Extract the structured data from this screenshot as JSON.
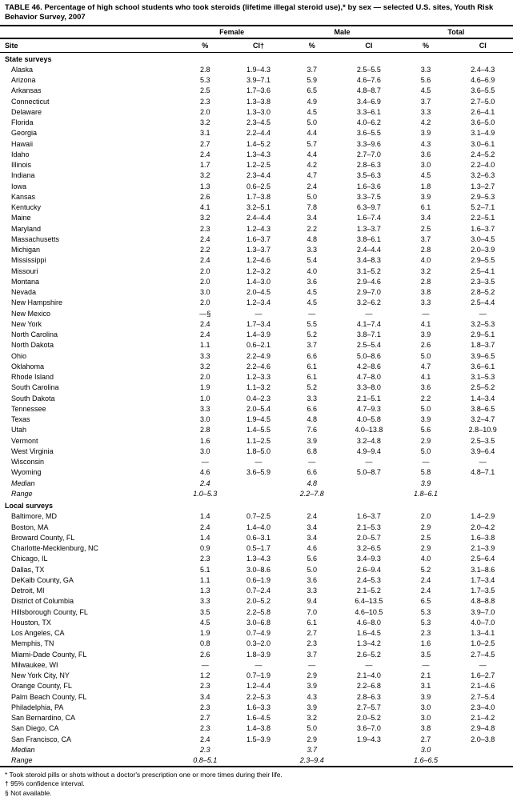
{
  "title": "TABLE 46. Percentage of high school students who took steroids (lifetime illegal steroid use),* by sex — selected U.S. sites, Youth Risk Behavior Survey, 2007",
  "group_headers": [
    "Female",
    "Male",
    "Total"
  ],
  "col_headers": {
    "site": "Site",
    "pct": "%",
    "ci": "CI",
    "ci_dagger": "CI†"
  },
  "sections": [
    {
      "label": "State surveys",
      "rows": [
        {
          "site": "Alaska",
          "f": "2.8",
          "fci": "1.9–4.3",
          "m": "3.7",
          "mci": "2.5–5.5",
          "t": "3.3",
          "tci": "2.4–4.3"
        },
        {
          "site": "Arizona",
          "f": "5.3",
          "fci": "3.9–7.1",
          "m": "5.9",
          "mci": "4.6–7.6",
          "t": "5.6",
          "tci": "4.6–6.9"
        },
        {
          "site": "Arkansas",
          "f": "2.5",
          "fci": "1.7–3.6",
          "m": "6.5",
          "mci": "4.8–8.7",
          "t": "4.5",
          "tci": "3.6–5.5"
        },
        {
          "site": "Connecticut",
          "f": "2.3",
          "fci": "1.3–3.8",
          "m": "4.9",
          "mci": "3.4–6.9",
          "t": "3.7",
          "tci": "2.7–5.0"
        },
        {
          "site": "Delaware",
          "f": "2.0",
          "fci": "1.3–3.0",
          "m": "4.5",
          "mci": "3.3–6.1",
          "t": "3.3",
          "tci": "2.6–4.1"
        },
        {
          "site": "Florida",
          "f": "3.2",
          "fci": "2.3–4.5",
          "m": "5.0",
          "mci": "4.0–6.2",
          "t": "4.2",
          "tci": "3.6–5.0"
        },
        {
          "site": "Georgia",
          "f": "3.1",
          "fci": "2.2–4.4",
          "m": "4.4",
          "mci": "3.6–5.5",
          "t": "3.9",
          "tci": "3.1–4.9"
        },
        {
          "site": "Hawaii",
          "f": "2.7",
          "fci": "1.4–5.2",
          "m": "5.7",
          "mci": "3.3–9.6",
          "t": "4.3",
          "tci": "3.0–6.1"
        },
        {
          "site": "Idaho",
          "f": "2.4",
          "fci": "1.3–4.3",
          "m": "4.4",
          "mci": "2.7–7.0",
          "t": "3.6",
          "tci": "2.4–5.2"
        },
        {
          "site": "Illinois",
          "f": "1.7",
          "fci": "1.2–2.5",
          "m": "4.2",
          "mci": "2.8–6.3",
          "t": "3.0",
          "tci": "2.2–4.0"
        },
        {
          "site": "Indiana",
          "f": "3.2",
          "fci": "2.3–4.4",
          "m": "4.7",
          "mci": "3.5–6.3",
          "t": "4.5",
          "tci": "3.2–6.3"
        },
        {
          "site": "Iowa",
          "f": "1.3",
          "fci": "0.6–2.5",
          "m": "2.4",
          "mci": "1.6–3.6",
          "t": "1.8",
          "tci": "1.3–2.7"
        },
        {
          "site": "Kansas",
          "f": "2.6",
          "fci": "1.7–3.8",
          "m": "5.0",
          "mci": "3.3–7.5",
          "t": "3.9",
          "tci": "2.9–5.3"
        },
        {
          "site": "Kentucky",
          "f": "4.1",
          "fci": "3.2–5.1",
          "m": "7.8",
          "mci": "6.3–9.7",
          "t": "6.1",
          "tci": "5.2–7.1"
        },
        {
          "site": "Maine",
          "f": "3.2",
          "fci": "2.4–4.4",
          "m": "3.4",
          "mci": "1.6–7.4",
          "t": "3.4",
          "tci": "2.2–5.1"
        },
        {
          "site": "Maryland",
          "f": "2.3",
          "fci": "1.2–4.3",
          "m": "2.2",
          "mci": "1.3–3.7",
          "t": "2.5",
          "tci": "1.6–3.7"
        },
        {
          "site": "Massachusetts",
          "f": "2.4",
          "fci": "1.6–3.7",
          "m": "4.8",
          "mci": "3.8–6.1",
          "t": "3.7",
          "tci": "3.0–4.5"
        },
        {
          "site": "Michigan",
          "f": "2.2",
          "fci": "1.3–3.7",
          "m": "3.3",
          "mci": "2.4–4.4",
          "t": "2.8",
          "tci": "2.0–3.9"
        },
        {
          "site": "Mississippi",
          "f": "2.4",
          "fci": "1.2–4.6",
          "m": "5.4",
          "mci": "3.4–8.3",
          "t": "4.0",
          "tci": "2.9–5.5"
        },
        {
          "site": "Missouri",
          "f": "2.0",
          "fci": "1.2–3.2",
          "m": "4.0",
          "mci": "3.1–5.2",
          "t": "3.2",
          "tci": "2.5–4.1"
        },
        {
          "site": "Montana",
          "f": "2.0",
          "fci": "1.4–3.0",
          "m": "3.6",
          "mci": "2.9–4.6",
          "t": "2.8",
          "tci": "2.3–3.5"
        },
        {
          "site": "Nevada",
          "f": "3.0",
          "fci": "2.0–4.5",
          "m": "4.5",
          "mci": "2.9–7.0",
          "t": "3.8",
          "tci": "2.8–5.2"
        },
        {
          "site": "New Hampshire",
          "f": "2.0",
          "fci": "1.2–3.4",
          "m": "4.5",
          "mci": "3.2–6.2",
          "t": "3.3",
          "tci": "2.5–4.4"
        },
        {
          "site": "New Mexico",
          "f": "—§",
          "fci": "—",
          "m": "—",
          "mci": "—",
          "t": "—",
          "tci": "—"
        },
        {
          "site": "New York",
          "f": "2.4",
          "fci": "1.7–3.4",
          "m": "5.5",
          "mci": "4.1–7.4",
          "t": "4.1",
          "tci": "3.2–5.3"
        },
        {
          "site": "North Carolina",
          "f": "2.4",
          "fci": "1.4–3.9",
          "m": "5.2",
          "mci": "3.8–7.1",
          "t": "3.9",
          "tci": "2.9–5.1"
        },
        {
          "site": "North Dakota",
          "f": "1.1",
          "fci": "0.6–2.1",
          "m": "3.7",
          "mci": "2.5–5.4",
          "t": "2.6",
          "tci": "1.8–3.7"
        },
        {
          "site": "Ohio",
          "f": "3.3",
          "fci": "2.2–4.9",
          "m": "6.6",
          "mci": "5.0–8.6",
          "t": "5.0",
          "tci": "3.9–6.5"
        },
        {
          "site": "Oklahoma",
          "f": "3.2",
          "fci": "2.2–4.6",
          "m": "6.1",
          "mci": "4.2–8.6",
          "t": "4.7",
          "tci": "3.6–6.1"
        },
        {
          "site": "Rhode Island",
          "f": "2.0",
          "fci": "1.2–3.3",
          "m": "6.1",
          "mci": "4.7–8.0",
          "t": "4.1",
          "tci": "3.1–5.3"
        },
        {
          "site": "South Carolina",
          "f": "1.9",
          "fci": "1.1–3.2",
          "m": "5.2",
          "mci": "3.3–8.0",
          "t": "3.6",
          "tci": "2.5–5.2"
        },
        {
          "site": "South Dakota",
          "f": "1.0",
          "fci": "0.4–2.3",
          "m": "3.3",
          "mci": "2.1–5.1",
          "t": "2.2",
          "tci": "1.4–3.4"
        },
        {
          "site": "Tennessee",
          "f": "3.3",
          "fci": "2.0–5.4",
          "m": "6.6",
          "mci": "4.7–9.3",
          "t": "5.0",
          "tci": "3.8–6.5"
        },
        {
          "site": "Texas",
          "f": "3.0",
          "fci": "1.9–4.5",
          "m": "4.8",
          "mci": "4.0–5.8",
          "t": "3.9",
          "tci": "3.2–4.7"
        },
        {
          "site": "Utah",
          "f": "2.8",
          "fci": "1.4–5.5",
          "m": "7.6",
          "mci": "4.0–13.8",
          "t": "5.6",
          "tci": "2.8–10.9"
        },
        {
          "site": "Vermont",
          "f": "1.6",
          "fci": "1.1–2.5",
          "m": "3.9",
          "mci": "3.2–4.8",
          "t": "2.9",
          "tci": "2.5–3.5"
        },
        {
          "site": "West Virginia",
          "f": "3.0",
          "fci": "1.8–5.0",
          "m": "6.8",
          "mci": "4.9–9.4",
          "t": "5.0",
          "tci": "3.9–6.4"
        },
        {
          "site": "Wisconsin",
          "f": "—",
          "fci": "—",
          "m": "—",
          "mci": "—",
          "t": "—",
          "tci": "—"
        },
        {
          "site": "Wyoming",
          "f": "4.6",
          "fci": "3.6–5.9",
          "m": "6.6",
          "mci": "5.0–8.7",
          "t": "5.8",
          "tci": "4.8–7.1"
        }
      ],
      "summary": [
        {
          "site": "Median",
          "f": "2.4",
          "fci": "",
          "m": "4.8",
          "mci": "",
          "t": "3.9",
          "tci": "",
          "ital": true
        },
        {
          "site": "Range",
          "f": "1.0–5.3",
          "fci": "",
          "m": "2.2–7.8",
          "mci": "",
          "t": "1.8–6.1",
          "tci": "",
          "ital": true
        }
      ]
    },
    {
      "label": "Local surveys",
      "rows": [
        {
          "site": "Baltimore, MD",
          "f": "1.4",
          "fci": "0.7–2.5",
          "m": "2.4",
          "mci": "1.6–3.7",
          "t": "2.0",
          "tci": "1.4–2.9"
        },
        {
          "site": "Boston, MA",
          "f": "2.4",
          "fci": "1.4–4.0",
          "m": "3.4",
          "mci": "2.1–5.3",
          "t": "2.9",
          "tci": "2.0–4.2"
        },
        {
          "site": "Broward County, FL",
          "f": "1.4",
          "fci": "0.6–3.1",
          "m": "3.4",
          "mci": "2.0–5.7",
          "t": "2.5",
          "tci": "1.6–3.8"
        },
        {
          "site": "Charlotte-Mecklenburg, NC",
          "f": "0.9",
          "fci": "0.5–1.7",
          "m": "4.6",
          "mci": "3.2–6.5",
          "t": "2.9",
          "tci": "2.1–3.9"
        },
        {
          "site": "Chicago, IL",
          "f": "2.3",
          "fci": "1.3–4.3",
          "m": "5.6",
          "mci": "3.4–9.3",
          "t": "4.0",
          "tci": "2.5–6.4"
        },
        {
          "site": "Dallas, TX",
          "f": "5.1",
          "fci": "3.0–8.6",
          "m": "5.0",
          "mci": "2.6–9.4",
          "t": "5.2",
          "tci": "3.1–8.6"
        },
        {
          "site": "DeKalb County, GA",
          "f": "1.1",
          "fci": "0.6–1.9",
          "m": "3.6",
          "mci": "2.4–5.3",
          "t": "2.4",
          "tci": "1.7–3.4"
        },
        {
          "site": "Detroit, MI",
          "f": "1.3",
          "fci": "0.7–2.4",
          "m": "3.3",
          "mci": "2.1–5.2",
          "t": "2.4",
          "tci": "1.7–3.5"
        },
        {
          "site": "District of Columbia",
          "f": "3.3",
          "fci": "2.0–5.2",
          "m": "9.4",
          "mci": "6.4–13.5",
          "t": "6.5",
          "tci": "4.8–8.8"
        },
        {
          "site": "Hillsborough County, FL",
          "f": "3.5",
          "fci": "2.2–5.8",
          "m": "7.0",
          "mci": "4.6–10.5",
          "t": "5.3",
          "tci": "3.9–7.0"
        },
        {
          "site": "Houston, TX",
          "f": "4.5",
          "fci": "3.0–6.8",
          "m": "6.1",
          "mci": "4.6–8.0",
          "t": "5.3",
          "tci": "4.0–7.0"
        },
        {
          "site": "Los Angeles, CA",
          "f": "1.9",
          "fci": "0.7–4.9",
          "m": "2.7",
          "mci": "1.6–4.5",
          "t": "2.3",
          "tci": "1.3–4.1"
        },
        {
          "site": "Memphis, TN",
          "f": "0.8",
          "fci": "0.3–2.0",
          "m": "2.3",
          "mci": "1.3–4.2",
          "t": "1.6",
          "tci": "1.0–2.5"
        },
        {
          "site": "Miami-Dade County, FL",
          "f": "2.6",
          "fci": "1.8–3.9",
          "m": "3.7",
          "mci": "2.6–5.2",
          "t": "3.5",
          "tci": "2.7–4.5"
        },
        {
          "site": "Milwaukee, WI",
          "f": "—",
          "fci": "—",
          "m": "—",
          "mci": "—",
          "t": "—",
          "tci": "—"
        },
        {
          "site": "New York City, NY",
          "f": "1.2",
          "fci": "0.7–1.9",
          "m": "2.9",
          "mci": "2.1–4.0",
          "t": "2.1",
          "tci": "1.6–2.7"
        },
        {
          "site": "Orange County, FL",
          "f": "2.3",
          "fci": "1.2–4.4",
          "m": "3.9",
          "mci": "2.2–6.8",
          "t": "3.1",
          "tci": "2.1–4.6"
        },
        {
          "site": "Palm Beach County, FL",
          "f": "3.4",
          "fci": "2.2–5.3",
          "m": "4.3",
          "mci": "2.8–6.3",
          "t": "3.9",
          "tci": "2.7–5.4"
        },
        {
          "site": "Philadelphia, PA",
          "f": "2.3",
          "fci": "1.6–3.3",
          "m": "3.9",
          "mci": "2.7–5.7",
          "t": "3.0",
          "tci": "2.3–4.0"
        },
        {
          "site": "San Bernardino, CA",
          "f": "2.7",
          "fci": "1.6–4.5",
          "m": "3.2",
          "mci": "2.0–5.2",
          "t": "3.0",
          "tci": "2.1–4.2"
        },
        {
          "site": "San Diego, CA",
          "f": "2.3",
          "fci": "1.4–3.8",
          "m": "5.0",
          "mci": "3.6–7.0",
          "t": "3.8",
          "tci": "2.9–4.8"
        },
        {
          "site": "San Francisco, CA",
          "f": "2.4",
          "fci": "1.5–3.9",
          "m": "2.9",
          "mci": "1.9–4.3",
          "t": "2.7",
          "tci": "2.0–3.8"
        }
      ],
      "summary": [
        {
          "site": "Median",
          "f": "2.3",
          "fci": "",
          "m": "3.7",
          "mci": "",
          "t": "3.0",
          "tci": "",
          "ital": true
        },
        {
          "site": "Range",
          "f": "0.8–5.1",
          "fci": "",
          "m": "2.3–9.4",
          "mci": "",
          "t": "1.6–6.5",
          "tci": "",
          "ital": true
        }
      ]
    }
  ],
  "footnotes": [
    "* Took steroid pills or shots without a doctor's prescription one or more times during their life.",
    "† 95% confidence interval.",
    "§ Not available."
  ]
}
